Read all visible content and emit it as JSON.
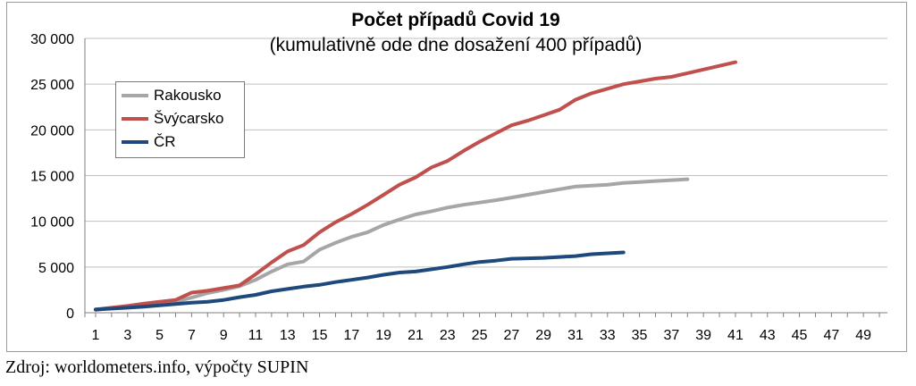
{
  "chart_data": {
    "type": "line",
    "title": "Počet případů Covid 19",
    "subtitle": "(kumulativně ode dne dosažení 400 případů)",
    "xlabel": "",
    "ylabel": "",
    "x_range": [
      1,
      50
    ],
    "ylim": [
      0,
      30000
    ],
    "y_ticks": [
      0,
      5000,
      10000,
      15000,
      20000,
      25000,
      30000
    ],
    "y_tick_labels": [
      "0",
      "5 000",
      "10 000",
      "15 000",
      "20 000",
      "25 000",
      "30 000"
    ],
    "x_ticks": [
      1,
      3,
      5,
      7,
      9,
      11,
      13,
      15,
      17,
      19,
      21,
      23,
      25,
      27,
      29,
      31,
      33,
      35,
      37,
      39,
      41,
      43,
      45,
      47,
      49
    ],
    "x_tick_labels": [
      "1",
      "3",
      "5",
      "7",
      "9",
      "11",
      "13",
      "15",
      "17",
      "19",
      "21",
      "23",
      "25",
      "27",
      "29",
      "31",
      "33",
      "35",
      "37",
      "39",
      "41",
      "43",
      "45",
      "47",
      "49"
    ],
    "grid": "horizontal",
    "legend_position": "top-left",
    "series": [
      {
        "name": "Rakousko",
        "color": "#a6a6a6",
        "values": [
          300,
          500,
          650,
          800,
          1000,
          1200,
          1650,
          2150,
          2500,
          2900,
          3600,
          4500,
          5300,
          5600,
          6900,
          7650,
          8300,
          8800,
          9600,
          10200,
          10750,
          11100,
          11500,
          11800,
          12050,
          12300,
          12600,
          12900,
          13200,
          13500,
          13800,
          13900,
          14000,
          14200,
          14300,
          14400,
          14500,
          14600
        ]
      },
      {
        "name": "Švýcarsko",
        "color": "#c0504d",
        "values": [
          350,
          550,
          750,
          1000,
          1200,
          1400,
          2200,
          2400,
          2700,
          3000,
          4200,
          5500,
          6700,
          7400,
          8800,
          9900,
          10800,
          11800,
          12900,
          14000,
          14800,
          15900,
          16600,
          17700,
          18700,
          19600,
          20500,
          21000,
          21600,
          22200,
          23300,
          24000,
          24500,
          25000,
          25300,
          25600,
          25800,
          26200,
          26600,
          27000,
          27400
        ]
      },
      {
        "name": "ČR",
        "color": "#1f497d",
        "values": [
          350,
          450,
          550,
          650,
          800,
          950,
          1100,
          1200,
          1400,
          1700,
          1950,
          2350,
          2600,
          2850,
          3050,
          3350,
          3600,
          3850,
          4150,
          4400,
          4500,
          4750,
          5000,
          5300,
          5550,
          5700,
          5900,
          5950,
          6000,
          6100,
          6200,
          6400,
          6500,
          6600
        ]
      }
    ]
  },
  "source_note": "Zdroj: worldometers.info, výpočty SUPIN"
}
